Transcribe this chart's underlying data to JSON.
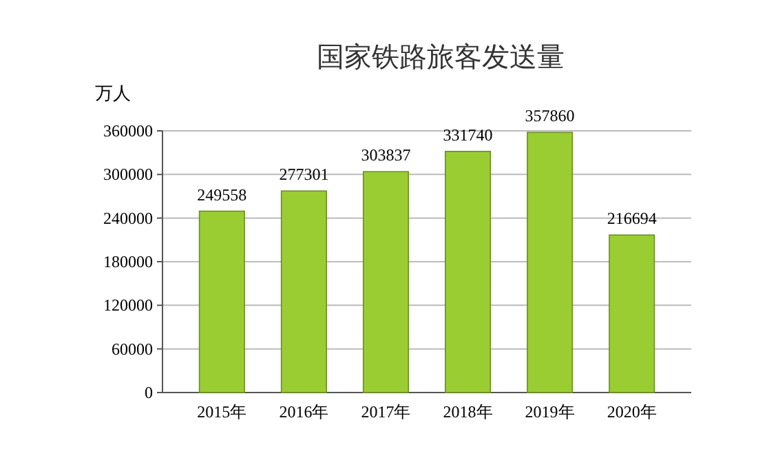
{
  "chart_data": {
    "type": "bar",
    "title": "国家铁路旅客发送量",
    "ylabel": "万人",
    "categories": [
      "2015年",
      "2016年",
      "2017年",
      "2018年",
      "2019年",
      "2020年"
    ],
    "values": [
      249558,
      277301,
      303837,
      331740,
      357860,
      216694
    ],
    "color": "#9acd32",
    "ylim": [
      0,
      360000
    ],
    "yticks": [
      0,
      60000,
      120000,
      180000,
      240000,
      300000,
      360000
    ],
    "grid": "y",
    "data_labels": true
  }
}
